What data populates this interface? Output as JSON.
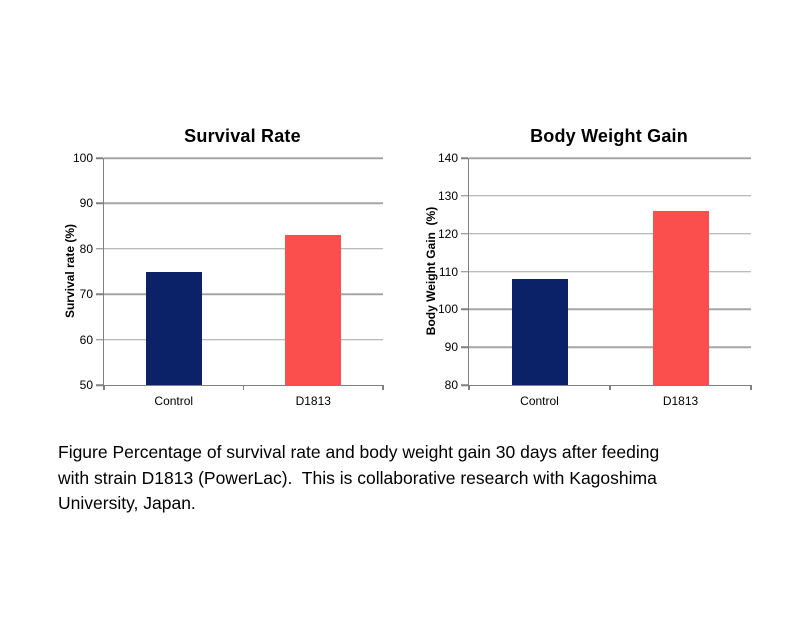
{
  "page": {
    "background": "#FFFFFF"
  },
  "caption": {
    "text": "Figure Percentage of survival rate and body weight gain 30 days after feeding with strain D1813 (PowerLac).  This is collaborative research with Kagoshima University, Japan.",
    "lines": [
      "Figure Percentage of survival rate and body weight gain 30 days after feeding",
      "with strain D1813 (PowerLac).  This is collaborative research with Kagoshima",
      "University, Japan."
    ]
  },
  "colors": {
    "control_bar": "#0B2268",
    "d1813_bar": "#FA4F4D",
    "gridline": "#A6A6A6",
    "axis": "#808080",
    "text": "#000000"
  },
  "chart_data": [
    {
      "type": "bar",
      "title": "Survival Rate",
      "ylabel": "Survival rate (%)",
      "xlabel": "",
      "categories": [
        "Control",
        "D1813"
      ],
      "values": [
        75,
        83
      ],
      "bar_colors": [
        "#0B2268",
        "#FA4F4D"
      ],
      "ylim": [
        50,
        100
      ],
      "ytick_step": 10,
      "ytick_labels": [
        "50",
        "60",
        "70",
        "80",
        "90",
        "100"
      ],
      "grid": true,
      "legend_position": "none"
    },
    {
      "type": "bar",
      "title": "Body Weight Gain",
      "ylabel": "Body Weight Gain  (%)",
      "xlabel": "",
      "categories": [
        "Control",
        "D1813"
      ],
      "values": [
        108,
        126
      ],
      "bar_colors": [
        "#0B2268",
        "#FA4F4D"
      ],
      "ylim": [
        80,
        140
      ],
      "ytick_step": 10,
      "ytick_labels": [
        "80",
        "90",
        "100",
        "110",
        "120",
        "130",
        "140"
      ],
      "grid": true,
      "legend_position": "none"
    }
  ]
}
